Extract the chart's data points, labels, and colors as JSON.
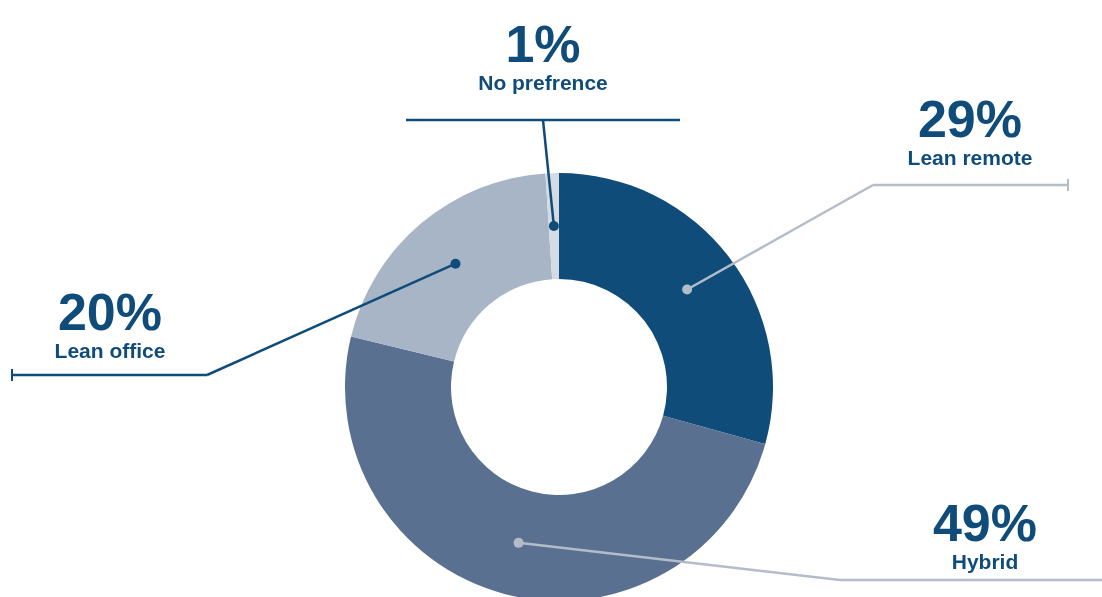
{
  "chart_data": {
    "type": "donut",
    "categories": [
      "Lean remote",
      "Hybrid",
      "Lean office",
      "No prefrence"
    ],
    "values": [
      29,
      49,
      20,
      1
    ],
    "colors": [
      "#0f4c7a",
      "#5a7090",
      "#a8b5c6",
      "#d5dbe3"
    ],
    "value_labels": [
      "29%",
      "49%",
      "20%",
      "1%"
    ]
  }
}
